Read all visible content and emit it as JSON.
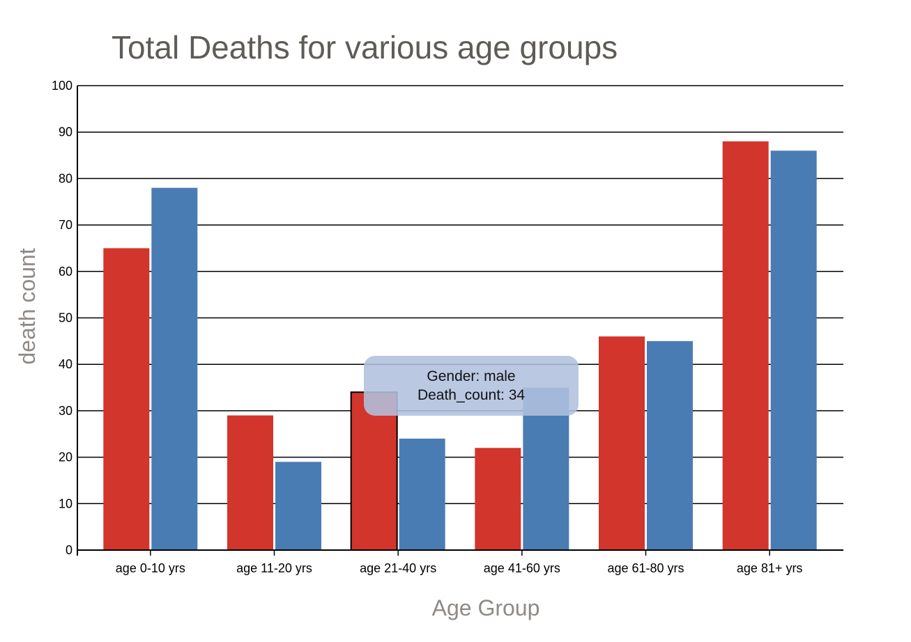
{
  "chart_data": {
    "type": "bar",
    "title": "Total Deaths for various age groups",
    "xlabel": "Age Group",
    "ylabel": "death count",
    "ylim": [
      0,
      100
    ],
    "yticks": [
      0,
      10,
      20,
      30,
      40,
      50,
      60,
      70,
      80,
      90,
      100
    ],
    "grid": true,
    "categories": [
      "age 0-10 yrs",
      "age 11-20 yrs",
      "age 21-40 yrs",
      "age 41-60 yrs",
      "age 61-80 yrs",
      "age 81+ yrs"
    ],
    "series": [
      {
        "values": [
          65,
          29,
          34,
          22,
          46,
          88
        ],
        "color": "#d2352b"
      },
      {
        "values": [
          78,
          19,
          24,
          35,
          45,
          86
        ],
        "color": "#4a7cb4"
      }
    ],
    "tooltip": {
      "line1": "Gender: male",
      "line2": "Death_count: 34"
    }
  }
}
